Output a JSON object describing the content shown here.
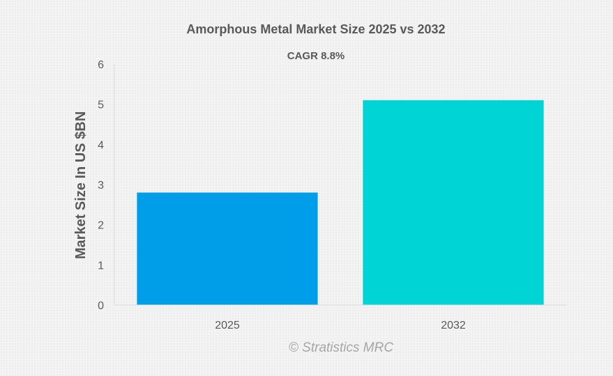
{
  "chart_data": {
    "type": "bar",
    "title": "Amorphous Metal Market Size 2025 vs 2032",
    "subtitle": "CAGR 8.8%",
    "categories": [
      "2025",
      "2032"
    ],
    "values": [
      2.8,
      5.1
    ],
    "bar_colors": [
      "#009ee9",
      "#00d4d4"
    ],
    "xlabel": "",
    "ylabel": "Market Size In US $BN",
    "ylim": [
      0,
      6
    ],
    "yticks": [
      0,
      1,
      2,
      3,
      4,
      5,
      6
    ],
    "grid": false,
    "legend": "none"
  },
  "watermark": "© Stratistics MRC",
  "colors": {
    "text": "#595959",
    "axis": "#d9d9d9",
    "watermark": "#a6a6a6",
    "background": "#f3f3f3"
  }
}
